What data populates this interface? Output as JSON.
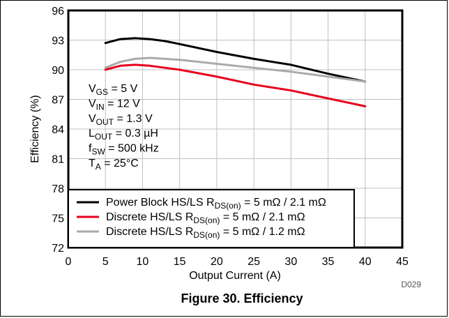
{
  "chart_data": {
    "type": "line",
    "xlabel": "Output Current (A)",
    "ylabel": "Efficiency (%)",
    "xlim": [
      0,
      45
    ],
    "ylim": [
      72,
      96
    ],
    "xticks": [
      0,
      5,
      10,
      15,
      20,
      25,
      30,
      35,
      40,
      45
    ],
    "yticks": [
      72,
      75,
      78,
      81,
      84,
      87,
      90,
      93,
      96
    ],
    "grid": true,
    "legend_position": "bottom-left",
    "series": [
      {
        "name_parts": [
          "Power Block HS/LS R",
          "DS(on)",
          " = 5 mΩ / 2.1 mΩ"
        ],
        "color": "#000000",
        "x": [
          5,
          7,
          9,
          11,
          13,
          15,
          20,
          25,
          30,
          35,
          40
        ],
        "y": [
          92.7,
          93.1,
          93.2,
          93.1,
          92.9,
          92.6,
          91.8,
          91.1,
          90.5,
          89.6,
          88.8
        ]
      },
      {
        "name_parts": [
          "Discrete HS/LS R",
          "DS(on)",
          " = 5 mΩ / 2.1 mΩ"
        ],
        "color": "#e8001c",
        "x": [
          5,
          7,
          9,
          11,
          13,
          15,
          20,
          25,
          30,
          35,
          40
        ],
        "y": [
          90.0,
          90.4,
          90.5,
          90.4,
          90.2,
          90.0,
          89.3,
          88.5,
          87.9,
          87.1,
          86.3
        ]
      },
      {
        "name_parts": [
          "Discrete HS/LS R",
          "DS(on)",
          " = 5 mΩ / 1.2 mΩ"
        ],
        "color": "#aaaaaa",
        "x": [
          5,
          7,
          9,
          11,
          13,
          15,
          20,
          25,
          30,
          35,
          40
        ],
        "y": [
          90.2,
          90.8,
          91.1,
          91.2,
          91.1,
          91.0,
          90.6,
          90.2,
          89.8,
          89.3,
          88.8
        ]
      }
    ],
    "conditions": [
      [
        "V",
        "GS",
        " = 5 V"
      ],
      [
        "V",
        "IN",
        " = 12 V"
      ],
      [
        "V",
        "OUT",
        " = 1.3 V"
      ],
      [
        "L",
        "OUT",
        " = 0.3 µH"
      ],
      [
        "f",
        "SW",
        " = 500 kHz"
      ],
      [
        "T",
        "A",
        " = 25°C"
      ]
    ]
  },
  "figure_code": "D029",
  "caption": "Figure 30. Efficiency"
}
